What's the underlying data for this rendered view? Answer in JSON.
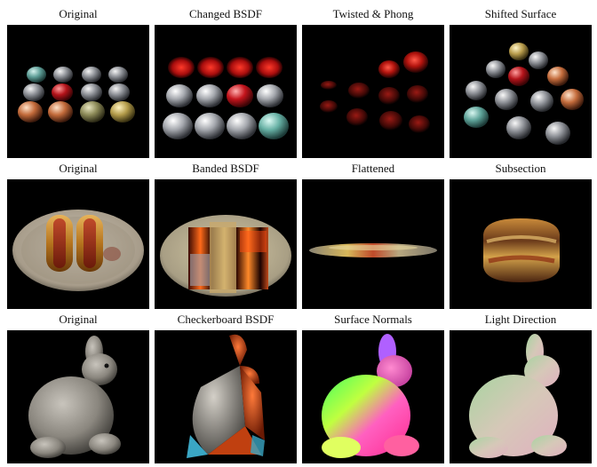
{
  "figure": {
    "rows": [
      {
        "panels": [
          {
            "caption": "Original",
            "scene": "spheres-original"
          },
          {
            "caption": "Changed BSDF",
            "scene": "spheres-changed-bsdf"
          },
          {
            "caption": "Twisted & Phong",
            "scene": "spheres-twisted-phong"
          },
          {
            "caption": "Shifted Surface",
            "scene": "spheres-shifted-surface"
          }
        ]
      },
      {
        "panels": [
          {
            "caption": "Original",
            "scene": "hotdog-original"
          },
          {
            "caption": "Banded BSDF",
            "scene": "hotdog-banded-bsdf"
          },
          {
            "caption": "Flattened",
            "scene": "hotdog-flattened"
          },
          {
            "caption": "Subsection",
            "scene": "hotdog-subsection"
          }
        ]
      },
      {
        "panels": [
          {
            "caption": "Original",
            "scene": "bunny-original"
          },
          {
            "caption": "Checkerboard BSDF",
            "scene": "bunny-checkerboard-bsdf"
          },
          {
            "caption": "Surface Normals",
            "scene": "bunny-surface-normals"
          },
          {
            "caption": "Light Direction",
            "scene": "bunny-light-direction"
          }
        ]
      }
    ]
  }
}
